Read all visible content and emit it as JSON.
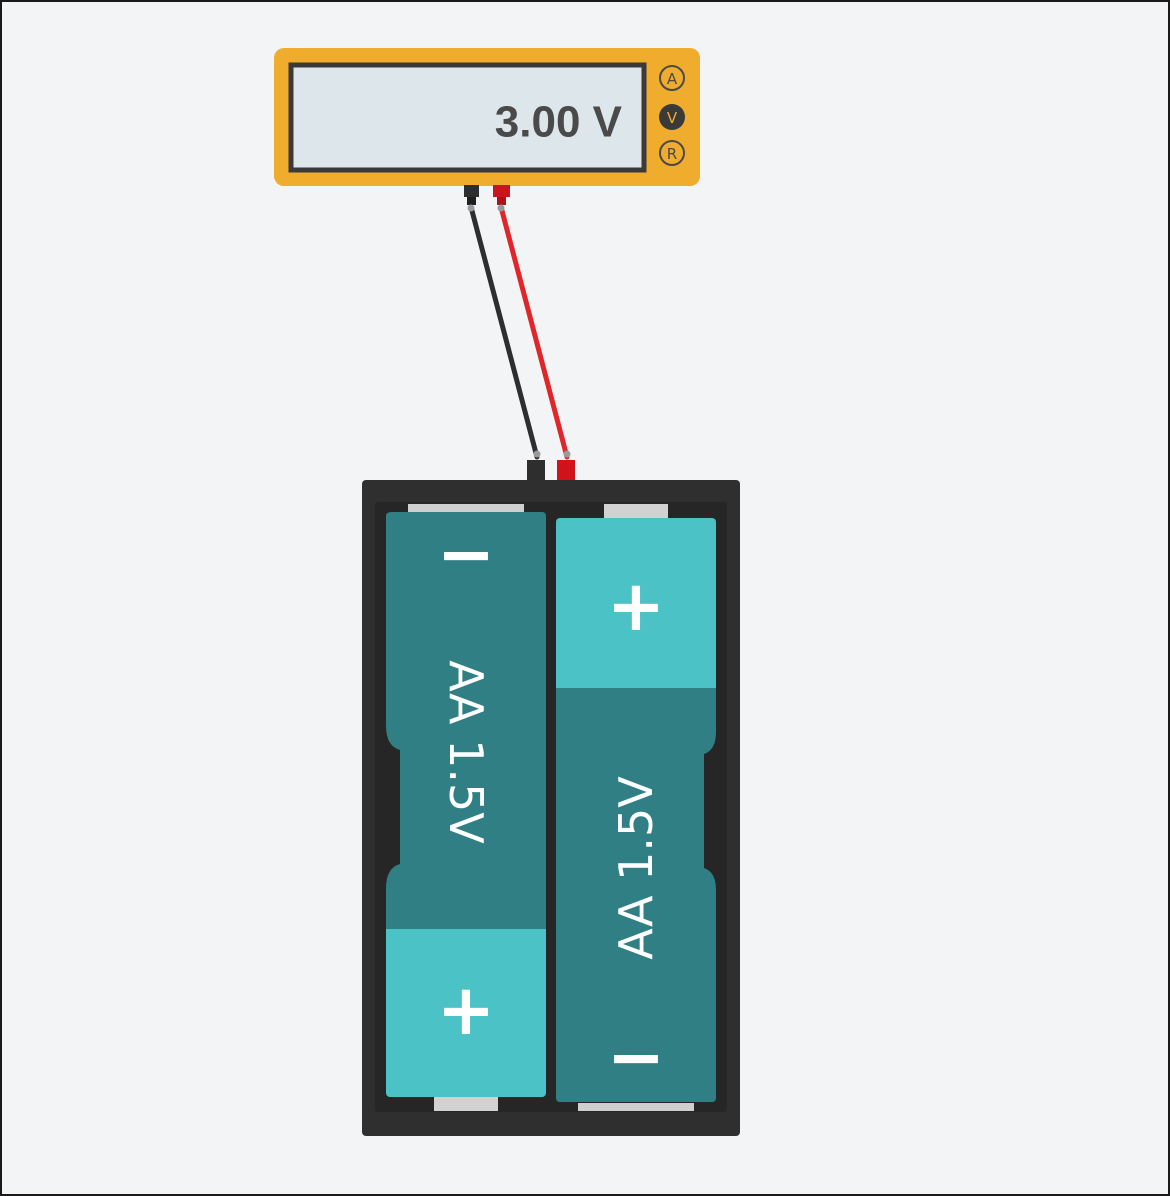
{
  "multimeter": {
    "reading": "3.00 V",
    "modes": [
      {
        "label": "A",
        "active": false
      },
      {
        "label": "V",
        "active": true
      },
      {
        "label": "R",
        "active": false
      }
    ]
  },
  "battery_holder": {
    "cells": [
      {
        "label": "AA 1.5V",
        "top_sign": "−",
        "bottom_sign": "+"
      },
      {
        "label": "AA 1.5V",
        "top_sign": "+",
        "bottom_sign": "−"
      }
    ]
  },
  "colors": {
    "meter_body": "#f0ac2d",
    "screen": "#dde6ea",
    "probe_black": "#2e2e2e",
    "probe_red": "#e0262b",
    "holder": "#2f2f2f",
    "cell_dark": "#2f7f85",
    "cell_light": "#4ac2c6"
  }
}
